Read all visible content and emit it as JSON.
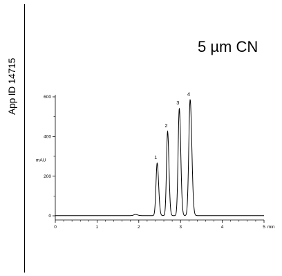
{
  "side_label": "App ID 14715",
  "chart_data": {
    "type": "line",
    "title": "5 µm CN",
    "ylabel": "mAU",
    "xlabel": "min",
    "xlim": [
      0,
      5
    ],
    "ylim": [
      0,
      600
    ],
    "x_ticks": [
      0,
      1,
      2,
      3,
      4,
      5
    ],
    "y_ticks": [
      0,
      200,
      400,
      600
    ],
    "x_tick_labels": [
      "0",
      "1",
      "2",
      "3",
      "4",
      "5"
    ],
    "y_tick_labels": [
      "0",
      "200",
      "400",
      "600"
    ],
    "grid": false,
    "peaks": [
      {
        "label": "1",
        "x": 2.44,
        "y": 265,
        "width": 0.028
      },
      {
        "label": "2",
        "x": 2.69,
        "y": 425,
        "width": 0.026
      },
      {
        "label": "3",
        "x": 2.97,
        "y": 540,
        "width": 0.028
      },
      {
        "label": "4",
        "x": 3.23,
        "y": 585,
        "width": 0.032
      }
    ],
    "minor_features": [
      {
        "x": 1.92,
        "y": 6,
        "width": 0.04
      }
    ],
    "baseline": 1
  }
}
